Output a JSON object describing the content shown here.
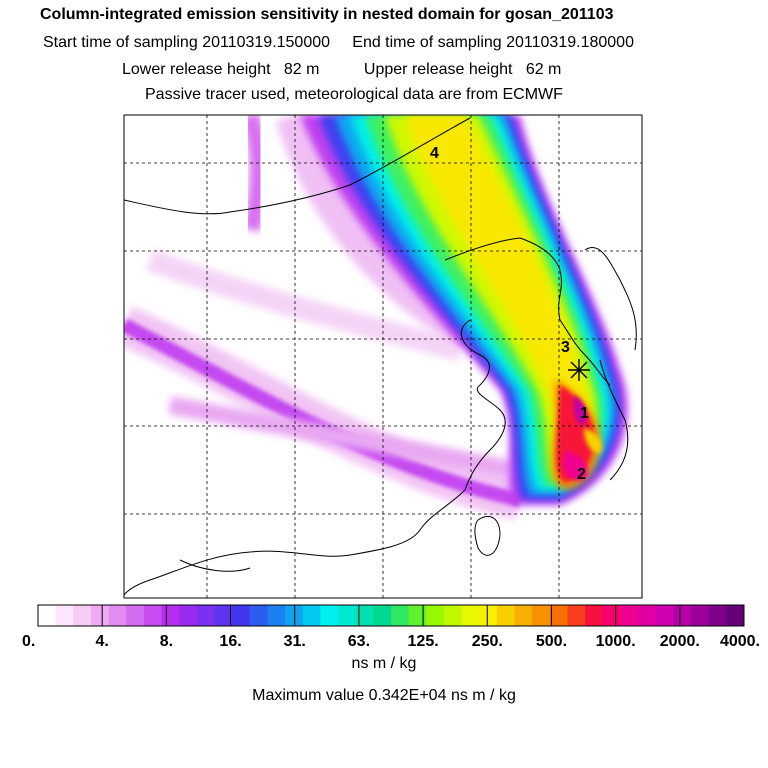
{
  "header": {
    "title": "Column-integrated emission sensitivity in nested domain for gosan_201103",
    "start_label": "Start time of sampling",
    "start_value": "20110319.150000",
    "end_label": "End time of sampling",
    "end_value": "20110319.180000",
    "lower_label": "Lower release height",
    "lower_value": "82 m",
    "upper_label": "Upper release height",
    "upper_value": "62 m",
    "note": "Passive tracer used, meteorological data are from ECMWF"
  },
  "map": {
    "receptor_marker": "asterisk-icon",
    "labels": [
      "1",
      "2",
      "3",
      "4"
    ]
  },
  "colorbar": {
    "ticks": [
      "0.",
      "4.",
      "8.",
      "16.",
      "31.",
      "63.",
      "125.",
      "250.",
      "500.",
      "1000.",
      "2000.",
      "4000."
    ],
    "colors": [
      "#ffffff",
      "#fbe6fb",
      "#f6ccf6",
      "#eeaaf2",
      "#e08cf0",
      "#d46cf0",
      "#c64cf0",
      "#b82cf0",
      "#9a2cf0",
      "#7c30f0",
      "#5e34f0",
      "#4038f0",
      "#2c5cf0",
      "#1c80f0",
      "#10a4f0",
      "#00c8f0",
      "#00f0f0",
      "#00e8d0",
      "#00e0b0",
      "#00d890",
      "#30e860",
      "#60f030",
      "#98f800",
      "#c0f800",
      "#e8f800",
      "#f8f000",
      "#f8d000",
      "#f8b000",
      "#f89000",
      "#f87000",
      "#f84020",
      "#f81040",
      "#f80070",
      "#f00090",
      "#e000a0",
      "#d000b0",
      "#b800a8",
      "#9c009c",
      "#80008c",
      "#640078"
    ],
    "units": "ns m / kg",
    "max_label": "Maximum value",
    "max_value": "0.342E+04",
    "max_units": "ns m / kg"
  }
}
